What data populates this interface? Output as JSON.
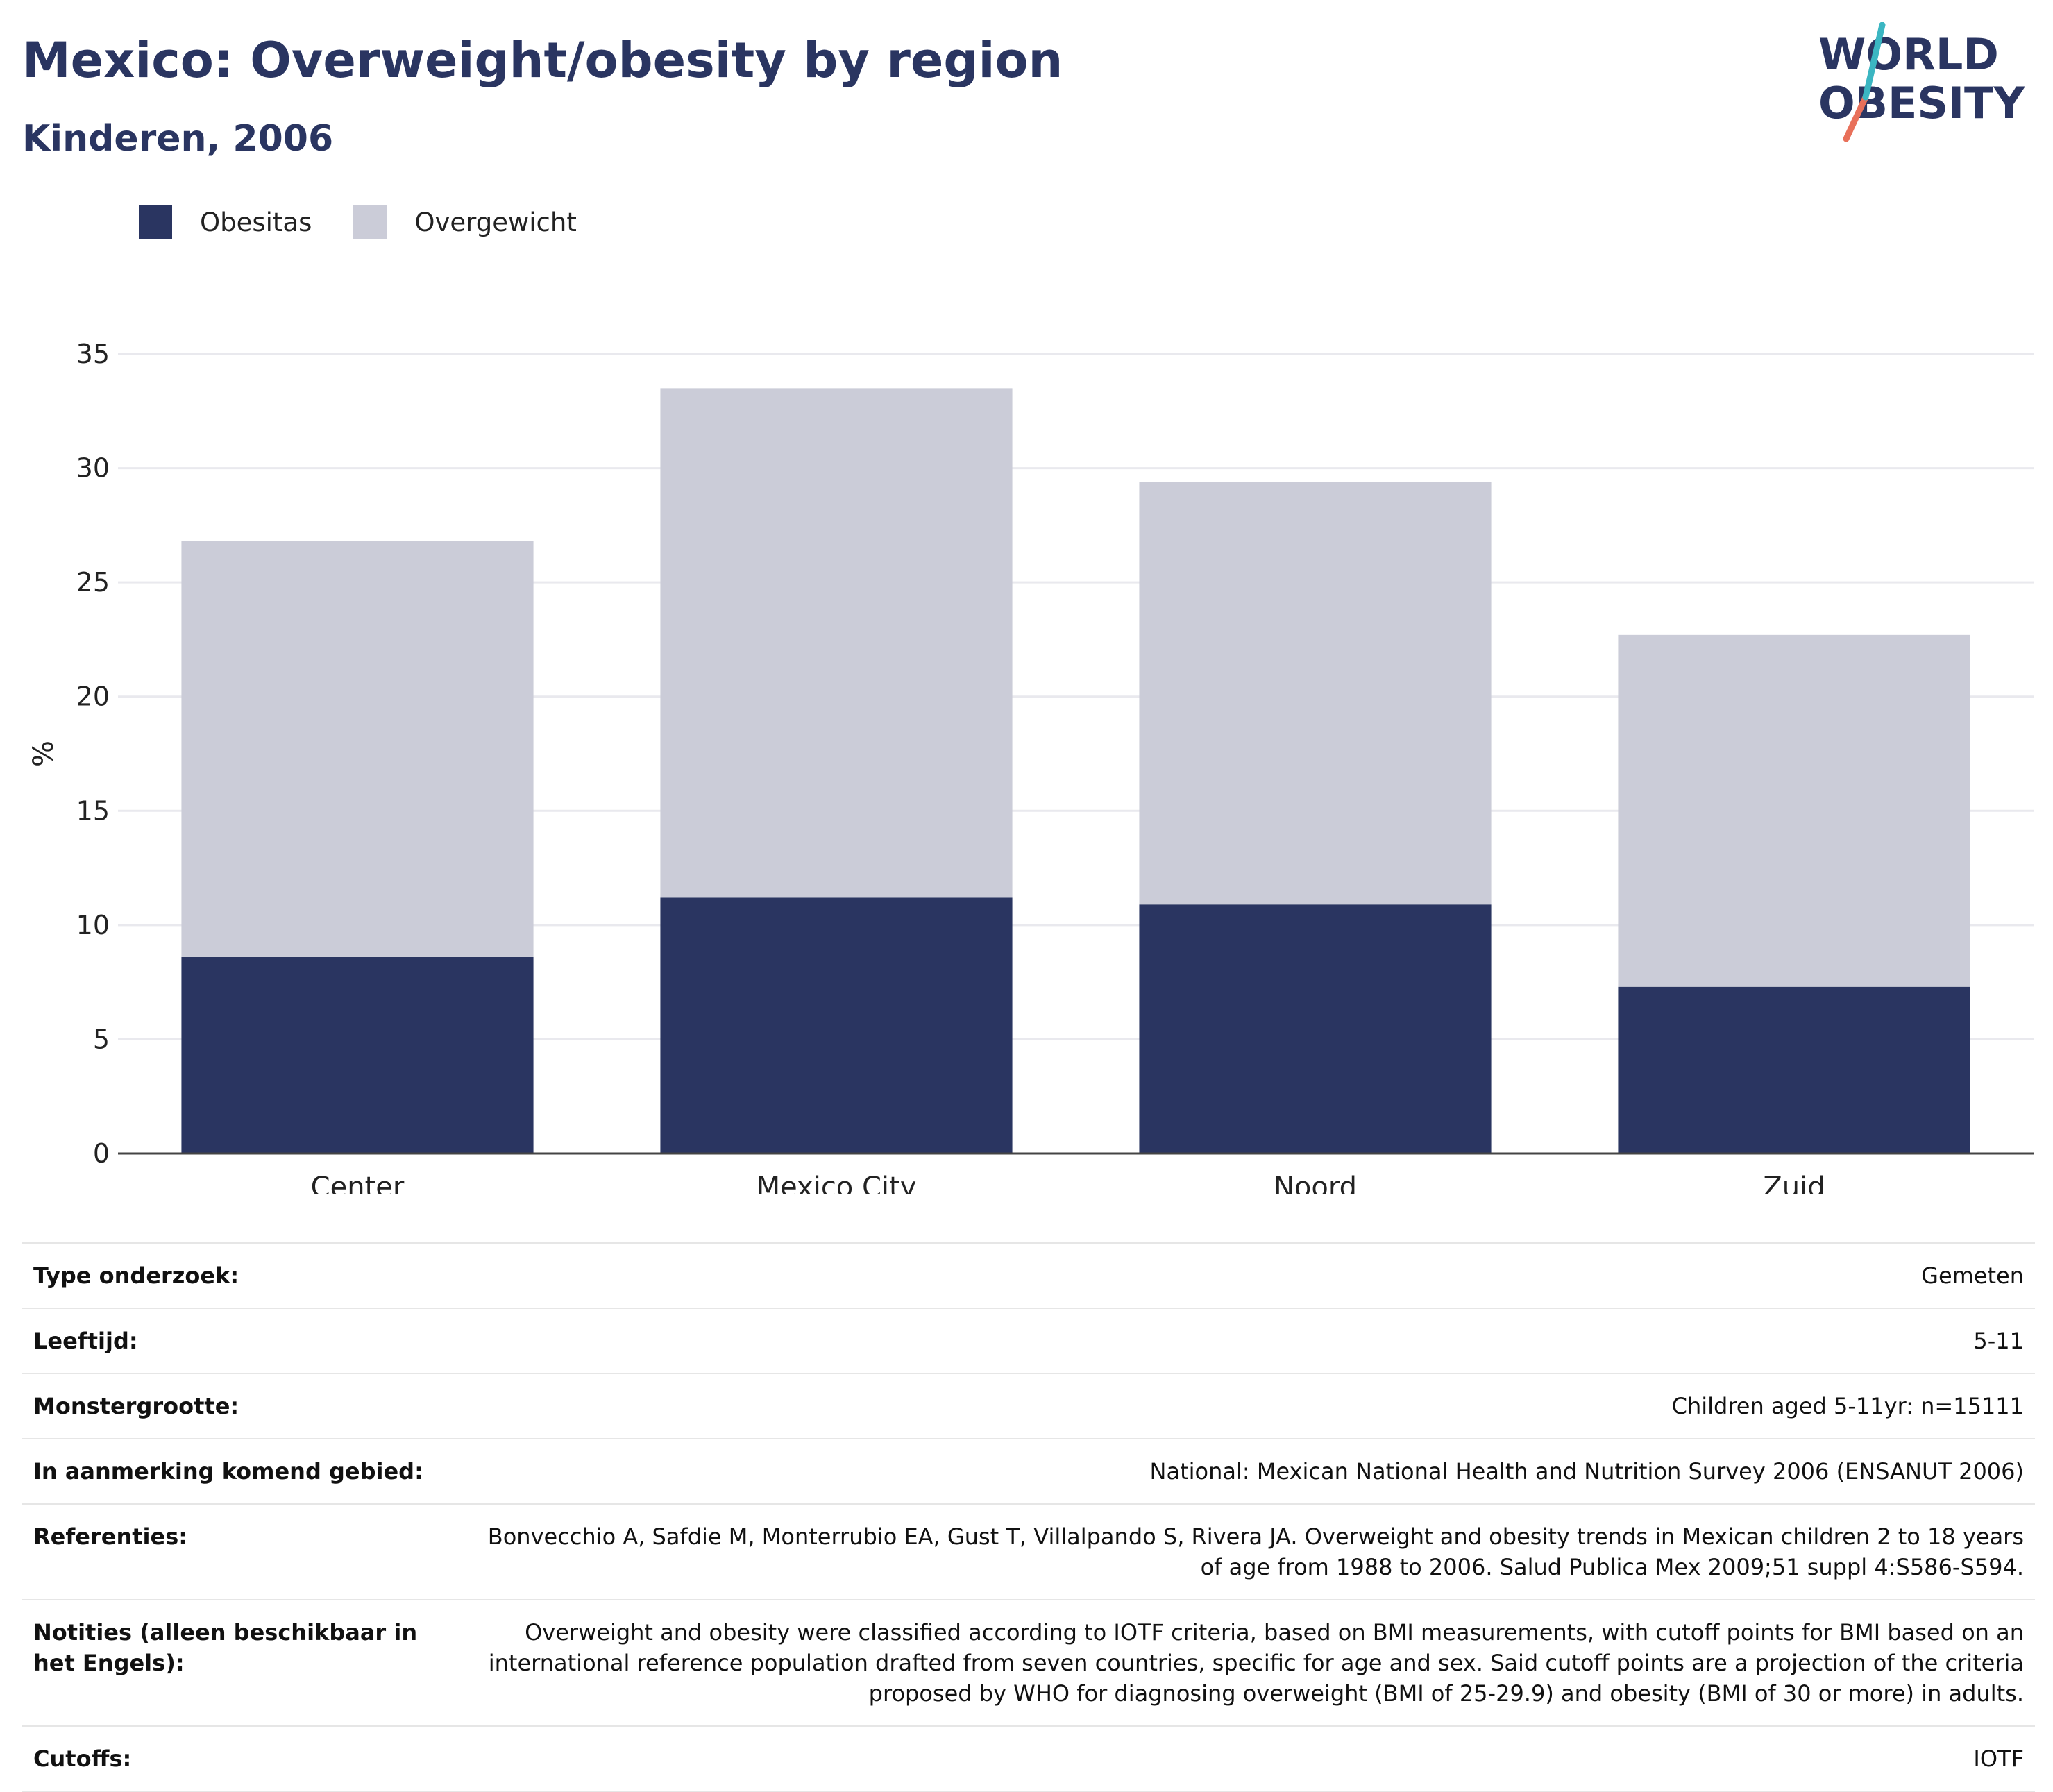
{
  "header": {
    "title": "Mexico: Overweight/obesity by region",
    "subtitle": "Kinderen, 2006"
  },
  "logo": {
    "line1": "WORLD",
    "line2": "OBESITY"
  },
  "legend": [
    {
      "label": "Obesitas",
      "color": "#2a3561"
    },
    {
      "label": "Overgewicht",
      "color": "#cbccd8"
    }
  ],
  "chart_data": {
    "type": "bar",
    "stacked": true,
    "categories": [
      "Center",
      "Mexico City",
      "Noord",
      "Zuid"
    ],
    "series": [
      {
        "name": "Obesitas",
        "values": [
          8.6,
          11.2,
          10.9,
          7.3
        ],
        "color": "#2a3561"
      },
      {
        "name": "Overgewicht",
        "values": [
          18.2,
          22.3,
          18.5,
          15.4
        ],
        "color": "#cbccd8"
      }
    ],
    "ylabel": "%",
    "ylim": [
      0,
      35
    ],
    "yticks": [
      0,
      5,
      10,
      15,
      20,
      25,
      30,
      35
    ],
    "grid": true,
    "legend_position": "top-left"
  },
  "info_table": [
    {
      "key": "Type onderzoek:",
      "value": "Gemeten"
    },
    {
      "key": "Leeftijd:",
      "value": "5-11"
    },
    {
      "key": "Monstergrootte:",
      "value": "Children aged 5-11yr: n=15111"
    },
    {
      "key": "In aanmerking komend gebied:",
      "value": "National: Mexican National Health and Nutrition Survey 2006 (ENSANUT 2006)"
    },
    {
      "key": "Referenties:",
      "value": "Bonvecchio A, Safdie M, Monterrubio EA, Gust T, Villalpando S, Rivera JA. Overweight and obesity trends in Mexican children 2 to 18 years of age from 1988 to 2006. Salud Publica Mex 2009;51 suppl 4:S586-S594."
    },
    {
      "key": "Notities (alleen beschikbaar in het Engels):",
      "value": "Overweight and obesity were classified according to IOTF criteria, based on BMI measurements, with cutoff points for BMI based on an international reference population drafted from seven countries, specific for age and sex. Said cutoff points are a projection of the criteria proposed by WHO for diagnosing overweight (BMI of 25-29.9) and obesity (BMI of 30 or more) in adults."
    },
    {
      "key": "Cutoffs:",
      "value": "IOTF"
    }
  ]
}
